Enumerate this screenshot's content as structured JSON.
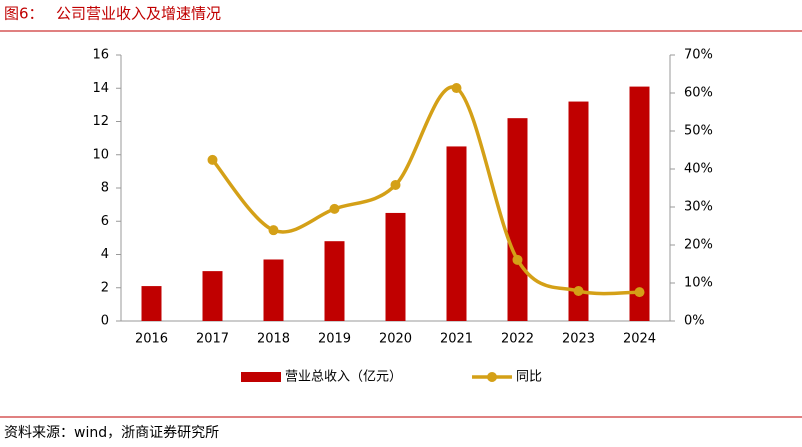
{
  "figure_label": "图6：",
  "source": "资料来源：wind，浙商证券研究所",
  "chart_data": {
    "type": "bar-line",
    "title": "公司营业收入及增速情况",
    "categories": [
      "2016",
      "2017",
      "2018",
      "2019",
      "2020",
      "2021",
      "2022",
      "2023",
      "2024"
    ],
    "series": [
      {
        "name": "营业总收入（亿元）",
        "type": "bar",
        "color": "#c00000",
        "values": [
          2.1,
          3.0,
          3.7,
          4.8,
          6.5,
          10.5,
          12.2,
          13.2,
          14.1
        ]
      },
      {
        "name": "同比",
        "type": "line",
        "axis": "y2",
        "color": "#d4a017",
        "smooth": true,
        "values": [
          null,
          42.4,
          23.9,
          29.5,
          35.8,
          61.3,
          16.1,
          7.9,
          7.6
        ]
      }
    ],
    "ylim": [
      0,
      16
    ],
    "yticks": [
      0,
      2,
      4,
      6,
      8,
      10,
      12,
      14,
      16
    ],
    "y2lim": [
      0,
      70
    ],
    "y2ticks": [
      {
        "value": 0,
        "label": "0%"
      },
      {
        "value": 10,
        "label": "10%"
      },
      {
        "value": 20,
        "label": "20%"
      },
      {
        "value": 30,
        "label": "30%"
      },
      {
        "value": 40,
        "label": "40%"
      },
      {
        "value": 50,
        "label": "50%"
      },
      {
        "value": 60,
        "label": "60%"
      },
      {
        "value": 70,
        "label": "70%"
      }
    ],
    "grid": false,
    "legend": "bottom"
  }
}
